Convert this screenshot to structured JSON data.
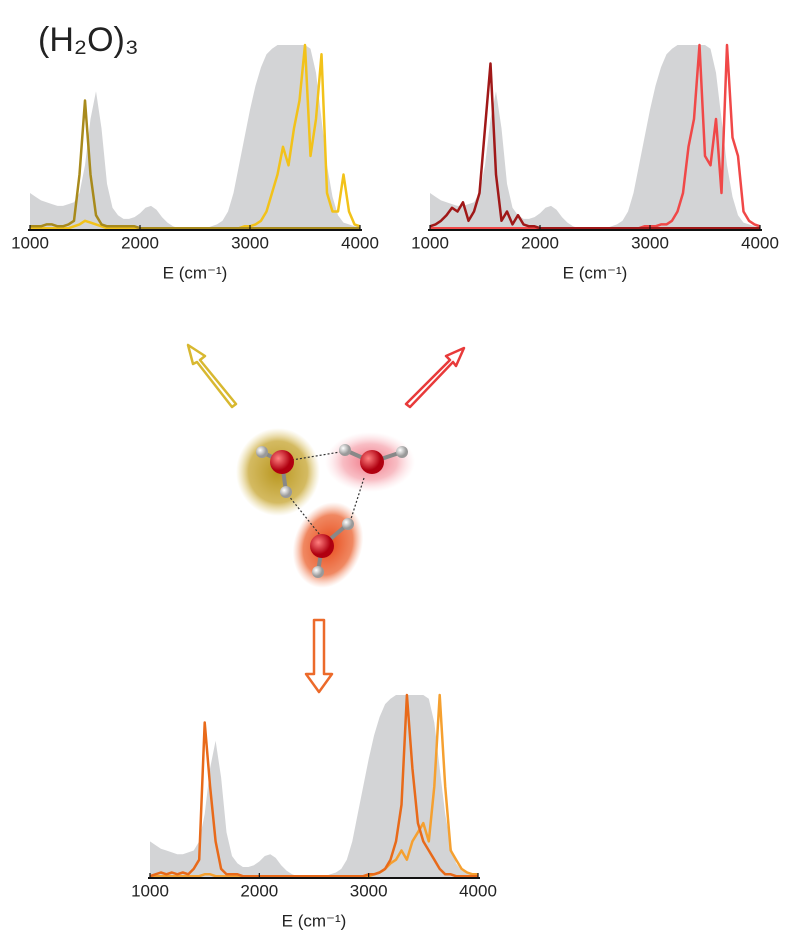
{
  "title": "(H₂O)₃",
  "chart_data": [
    {
      "type": "line",
      "xlabel": "E (cm⁻¹)",
      "xlim": [
        1000,
        4000
      ],
      "xticks": [
        1000,
        2000,
        3000,
        4000
      ],
      "ylim": [
        0,
        1
      ],
      "x": [
        1000,
        1050,
        1100,
        1150,
        1200,
        1250,
        1300,
        1350,
        1400,
        1450,
        1500,
        1550,
        1600,
        1650,
        1700,
        1750,
        1800,
        1850,
        1900,
        1950,
        2000,
        2050,
        2100,
        2150,
        2200,
        2250,
        2300,
        2350,
        2400,
        2450,
        2500,
        2550,
        2600,
        2650,
        2700,
        2750,
        2800,
        2850,
        2900,
        2950,
        3000,
        3050,
        3100,
        3150,
        3200,
        3250,
        3300,
        3350,
        3400,
        3450,
        3500,
        3550,
        3600,
        3650,
        3700,
        3750,
        3800,
        3850,
        3900,
        3950,
        4000
      ],
      "series": [
        {
          "color": "#d3d4d6",
          "area": true,
          "values": [
            0.2,
            0.18,
            0.16,
            0.15,
            0.14,
            0.13,
            0.13,
            0.14,
            0.15,
            0.2,
            0.35,
            0.6,
            0.75,
            0.55,
            0.25,
            0.12,
            0.08,
            0.06,
            0.06,
            0.07,
            0.09,
            0.12,
            0.13,
            0.11,
            0.07,
            0.04,
            0.02,
            0.01,
            0.01,
            0.01,
            0.01,
            0.01,
            0.01,
            0.02,
            0.03,
            0.05,
            0.1,
            0.2,
            0.35,
            0.5,
            0.65,
            0.78,
            0.88,
            0.95,
            0.98,
            1,
            1,
            1,
            1,
            1,
            1,
            0.98,
            0.85,
            0.6,
            0.35,
            0.18,
            0.08,
            0.04,
            0.03,
            0.02,
            0.02
          ]
        },
        {
          "color": "#f2c21a",
          "values": [
            0.01,
            0.01,
            0.01,
            0.01,
            0.01,
            0.01,
            0.01,
            0.01,
            0.02,
            0.03,
            0.05,
            0.04,
            0.03,
            0.02,
            0.01,
            0.01,
            0.01,
            0.01,
            0.01,
            0.01,
            0.01,
            0.01,
            0.01,
            0.01,
            0.01,
            0.01,
            0.01,
            0.01,
            0.01,
            0.01,
            0.01,
            0.01,
            0.01,
            0.01,
            0.01,
            0.01,
            0.01,
            0.01,
            0.01,
            0.02,
            0.02,
            0.03,
            0.05,
            0.1,
            0.2,
            0.3,
            0.45,
            0.35,
            0.55,
            0.7,
            1,
            0.4,
            0.6,
            0.95,
            0.2,
            0.1,
            0.1,
            0.3,
            0.1,
            0.03,
            0.02
          ]
        },
        {
          "color": "#a88a1c",
          "values": [
            0.02,
            0.02,
            0.02,
            0.03,
            0.03,
            0.02,
            0.02,
            0.03,
            0.05,
            0.3,
            0.7,
            0.3,
            0.08,
            0.03,
            0.02,
            0.02,
            0.02,
            0.02,
            0.02,
            0.02,
            0.01,
            0.01,
            0.01,
            0.01,
            0.01,
            0.01,
            0.01,
            0.01,
            0.01,
            0.01,
            0.01,
            0.01,
            0.01,
            0.01,
            0.01,
            0.01,
            0.01,
            0.01,
            0.01,
            0.01,
            0.01,
            0.01,
            0.01,
            0.01,
            0.01,
            0.01,
            0.01,
            0.01,
            0.01,
            0.01,
            0.01,
            0.01,
            0.01,
            0.01,
            0.01,
            0.01,
            0.01,
            0.01,
            0.01,
            0.01,
            0.01
          ]
        }
      ]
    },
    {
      "type": "line",
      "xlabel": "E (cm⁻¹)",
      "xlim": [
        1000,
        4000
      ],
      "xticks": [
        1000,
        2000,
        3000,
        4000
      ],
      "ylim": [
        0,
        1
      ],
      "x": [
        1000,
        1050,
        1100,
        1150,
        1200,
        1250,
        1300,
        1350,
        1400,
        1450,
        1500,
        1550,
        1600,
        1650,
        1700,
        1750,
        1800,
        1850,
        1900,
        1950,
        2000,
        2050,
        2100,
        2150,
        2200,
        2250,
        2300,
        2350,
        2400,
        2450,
        2500,
        2550,
        2600,
        2650,
        2700,
        2750,
        2800,
        2850,
        2900,
        2950,
        3000,
        3050,
        3100,
        3150,
        3200,
        3250,
        3300,
        3350,
        3400,
        3450,
        3500,
        3550,
        3600,
        3650,
        3700,
        3750,
        3800,
        3850,
        3900,
        3950,
        4000
      ],
      "series": [
        {
          "color": "#d3d4d6",
          "area": true,
          "values": [
            0.2,
            0.18,
            0.16,
            0.15,
            0.14,
            0.13,
            0.13,
            0.14,
            0.15,
            0.2,
            0.35,
            0.6,
            0.75,
            0.55,
            0.25,
            0.12,
            0.08,
            0.06,
            0.06,
            0.07,
            0.09,
            0.12,
            0.13,
            0.11,
            0.07,
            0.04,
            0.02,
            0.01,
            0.01,
            0.01,
            0.01,
            0.01,
            0.01,
            0.02,
            0.03,
            0.05,
            0.1,
            0.2,
            0.35,
            0.5,
            0.65,
            0.78,
            0.88,
            0.95,
            0.98,
            1,
            1,
            1,
            1,
            1,
            1,
            0.98,
            0.85,
            0.6,
            0.35,
            0.18,
            0.08,
            0.04,
            0.03,
            0.02,
            0.02
          ]
        },
        {
          "color": "#f04848",
          "values": [
            0.01,
            0.01,
            0.01,
            0.01,
            0.01,
            0.01,
            0.01,
            0.01,
            0.01,
            0.01,
            0.01,
            0.01,
            0.01,
            0.01,
            0.01,
            0.01,
            0.01,
            0.01,
            0.01,
            0.01,
            0.01,
            0.01,
            0.01,
            0.01,
            0.01,
            0.01,
            0.01,
            0.01,
            0.01,
            0.01,
            0.01,
            0.01,
            0.01,
            0.01,
            0.01,
            0.01,
            0.01,
            0.01,
            0.01,
            0.02,
            0.02,
            0.02,
            0.03,
            0.03,
            0.05,
            0.1,
            0.2,
            0.45,
            0.6,
            1,
            0.4,
            0.35,
            0.6,
            0.2,
            1,
            0.5,
            0.4,
            0.1,
            0.05,
            0.03,
            0.02
          ]
        },
        {
          "color": "#a01818",
          "values": [
            0.02,
            0.03,
            0.05,
            0.08,
            0.12,
            0.1,
            0.15,
            0.05,
            0.1,
            0.2,
            0.55,
            0.9,
            0.3,
            0.05,
            0.1,
            0.03,
            0.08,
            0.03,
            0.02,
            0.02,
            0.01,
            0.01,
            0.01,
            0.01,
            0.01,
            0.01,
            0.01,
            0.01,
            0.01,
            0.01,
            0.01,
            0.01,
            0.01,
            0.01,
            0.01,
            0.01,
            0.01,
            0.01,
            0.01,
            0.01,
            0.01,
            0.01,
            0.01,
            0.01,
            0.01,
            0.01,
            0.01,
            0.01,
            0.01,
            0.01,
            0.01,
            0.01,
            0.01,
            0.01,
            0.01,
            0.01,
            0.01,
            0.01,
            0.01,
            0.01,
            0.01
          ]
        }
      ]
    },
    {
      "type": "line",
      "xlabel": "E (cm⁻¹)",
      "xlim": [
        1000,
        4000
      ],
      "xticks": [
        1000,
        2000,
        3000,
        4000
      ],
      "ylim": [
        0,
        1
      ],
      "x": [
        1000,
        1050,
        1100,
        1150,
        1200,
        1250,
        1300,
        1350,
        1400,
        1450,
        1500,
        1550,
        1600,
        1650,
        1700,
        1750,
        1800,
        1850,
        1900,
        1950,
        2000,
        2050,
        2100,
        2150,
        2200,
        2250,
        2300,
        2350,
        2400,
        2450,
        2500,
        2550,
        2600,
        2650,
        2700,
        2750,
        2800,
        2850,
        2900,
        2950,
        3000,
        3050,
        3100,
        3150,
        3200,
        3250,
        3300,
        3350,
        3400,
        3450,
        3500,
        3550,
        3600,
        3650,
        3700,
        3750,
        3800,
        3850,
        3900,
        3950,
        4000
      ],
      "series": [
        {
          "color": "#d3d4d6",
          "area": true,
          "values": [
            0.2,
            0.18,
            0.16,
            0.15,
            0.14,
            0.13,
            0.13,
            0.14,
            0.15,
            0.2,
            0.35,
            0.6,
            0.75,
            0.55,
            0.25,
            0.12,
            0.08,
            0.06,
            0.06,
            0.07,
            0.09,
            0.12,
            0.13,
            0.11,
            0.07,
            0.04,
            0.02,
            0.01,
            0.01,
            0.01,
            0.01,
            0.01,
            0.01,
            0.02,
            0.03,
            0.05,
            0.1,
            0.2,
            0.35,
            0.5,
            0.65,
            0.78,
            0.88,
            0.95,
            0.98,
            1,
            1,
            1,
            1,
            1,
            1,
            0.98,
            0.85,
            0.6,
            0.35,
            0.18,
            0.08,
            0.04,
            0.03,
            0.02,
            0.02
          ]
        },
        {
          "color": "#f5a030",
          "values": [
            0.01,
            0.01,
            0.01,
            0.01,
            0.01,
            0.01,
            0.01,
            0.01,
            0.01,
            0.01,
            0.02,
            0.02,
            0.01,
            0.01,
            0.01,
            0.01,
            0.01,
            0.01,
            0.01,
            0.01,
            0.01,
            0.01,
            0.01,
            0.01,
            0.01,
            0.01,
            0.01,
            0.01,
            0.01,
            0.01,
            0.01,
            0.01,
            0.01,
            0.01,
            0.01,
            0.01,
            0.01,
            0.01,
            0.01,
            0.01,
            0.01,
            0.02,
            0.03,
            0.05,
            0.08,
            0.1,
            0.15,
            0.1,
            0.2,
            0.25,
            0.3,
            0.2,
            0.5,
            1,
            0.5,
            0.15,
            0.1,
            0.05,
            0.03,
            0.02,
            0.02
          ]
        },
        {
          "color": "#e86a1a",
          "values": [
            0.01,
            0.02,
            0.03,
            0.02,
            0.03,
            0.02,
            0.03,
            0.02,
            0.05,
            0.1,
            0.85,
            0.5,
            0.2,
            0.05,
            0.02,
            0.02,
            0.02,
            0.01,
            0.01,
            0.01,
            0.01,
            0.01,
            0.01,
            0.01,
            0.01,
            0.01,
            0.01,
            0.01,
            0.01,
            0.01,
            0.01,
            0.01,
            0.01,
            0.01,
            0.01,
            0.01,
            0.01,
            0.01,
            0.01,
            0.01,
            0.02,
            0.02,
            0.03,
            0.05,
            0.1,
            0.2,
            0.4,
            1,
            0.6,
            0.3,
            0.2,
            0.15,
            0.1,
            0.05,
            0.02,
            0.02,
            0.01,
            0.01,
            0.01,
            0.01,
            0.01
          ]
        }
      ]
    }
  ]
}
